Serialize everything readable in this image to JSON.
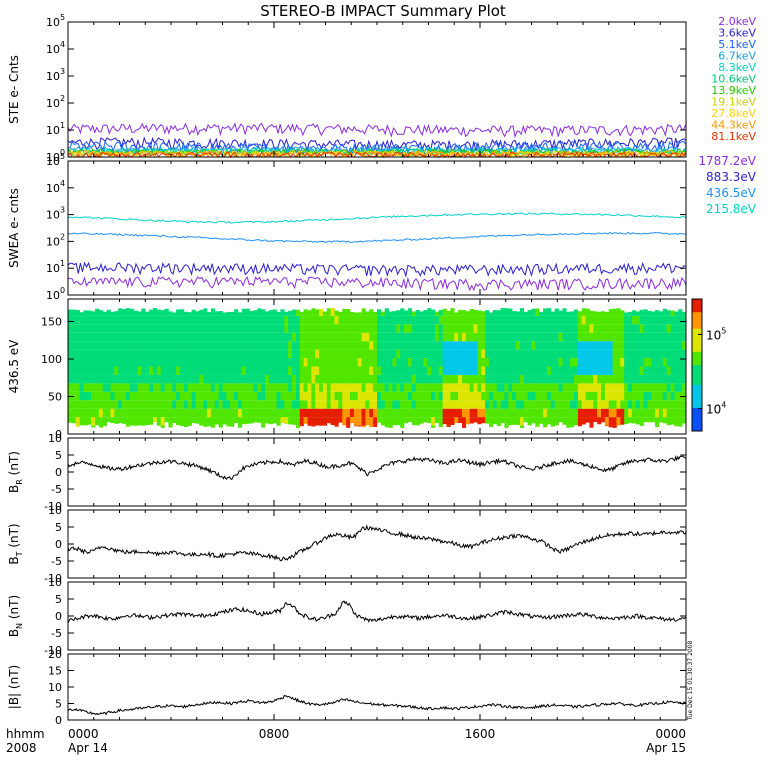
{
  "title": "STEREO-B IMPACT Summary Plot",
  "footer": {
    "row1": "hhmm",
    "row2": "2008",
    "x_ticks": [
      "0000",
      "0800",
      "1600",
      "0000"
    ],
    "x_dates": [
      "Apr 14",
      "",
      "",
      "Apr 15"
    ]
  },
  "timestamp": "Tue Dec 15 01:30:37 2008",
  "chart_data": [
    {
      "type": "line",
      "ylabel": "STE e- Cnts",
      "yscale": "log",
      "ylim": [
        1,
        100000
      ],
      "y_ticks": [
        "10",
        "10",
        "10",
        "10",
        "10",
        "10"
      ],
      "y_tick_exps": [
        "0",
        "1",
        "2",
        "3",
        "4",
        "5"
      ],
      "series": [
        {
          "name": "2.0keV",
          "color": "#8b2be2",
          "level": 11
        },
        {
          "name": "3.6keV",
          "color": "#2a1fcf",
          "level": 3.2
        },
        {
          "name": "5.1keV",
          "color": "#1e64ff",
          "level": 2.4
        },
        {
          "name": "6.7keV",
          "color": "#1ea0e6",
          "level": 1.9
        },
        {
          "name": "8.3keV",
          "color": "#00d2c8",
          "level": 1.7
        },
        {
          "name": "10.6keV",
          "color": "#00c878",
          "level": 1.6
        },
        {
          "name": "13.9keV",
          "color": "#28c800",
          "level": 1.5
        },
        {
          "name": "19.1keV",
          "color": "#c8d200",
          "level": 1.4
        },
        {
          "name": "27.8keV",
          "color": "#ffd200",
          "level": 1.3
        },
        {
          "name": "44.3keV",
          "color": "#ff9600",
          "level": 1.25
        },
        {
          "name": "81.1keV",
          "color": "#e63200",
          "level": 1.2
        }
      ]
    },
    {
      "type": "line",
      "ylabel": "SWEA e- cnts",
      "yscale": "log",
      "ylim": [
        1,
        100000
      ],
      "y_ticks": [
        "10",
        "10",
        "10",
        "10",
        "10",
        "10"
      ],
      "y_tick_exps": [
        "0",
        "1",
        "2",
        "3",
        "4",
        "5"
      ],
      "series": [
        {
          "name": "1787.2eV",
          "color": "#8b2be2",
          "level": 3
        },
        {
          "name": "883.3eV",
          "color": "#2a1fcf",
          "level": 10
        },
        {
          "name": "436.5eV",
          "color": "#1e90ff",
          "level": 150
        },
        {
          "name": "215.8eV",
          "color": "#00d2c8",
          "level": 800
        }
      ]
    },
    {
      "type": "heatmap",
      "ylabel": "436.5 eV",
      "ylim": [
        0,
        180
      ],
      "y_ticks": [
        "0",
        "50",
        "100",
        "150"
      ],
      "colorbar": {
        "ticks": [
          "10",
          "10"
        ],
        "tick_exps": [
          "4",
          "5"
        ],
        "range": [
          5000,
          300000
        ]
      }
    },
    {
      "type": "line",
      "ylabel": "B",
      "ylabel_sub": "R",
      "ylabel_unit": "(nT)",
      "ylim": [
        -10,
        10
      ],
      "y_ticks": [
        "10",
        "5",
        "0",
        "-5",
        "-10"
      ],
      "color": "#000000"
    },
    {
      "type": "line",
      "ylabel": "B",
      "ylabel_sub": "T",
      "ylabel_unit": "(nT)",
      "ylim": [
        -10,
        10
      ],
      "y_ticks": [
        "10",
        "5",
        "0",
        "-5",
        "-10"
      ],
      "color": "#000000"
    },
    {
      "type": "line",
      "ylabel": "B",
      "ylabel_sub": "N",
      "ylabel_unit": "(nT)",
      "ylim": [
        -10,
        10
      ],
      "y_ticks": [
        "10",
        "5",
        "0",
        "-5",
        "-10"
      ],
      "color": "#000000"
    },
    {
      "type": "line",
      "ylabel": "|B| (nT)",
      "ylim": [
        0,
        20
      ],
      "y_ticks": [
        "20",
        "15",
        "10",
        "5",
        "0"
      ],
      "color": "#000000"
    }
  ],
  "series_levels": {
    "BR": [
      2.0,
      2.4,
      2.7,
      2.6,
      2.3,
      1.8,
      1.2,
      1.0,
      0.9,
      1.1,
      1.5,
      1.9,
      2.2,
      2.5,
      2.8,
      3.0,
      3.1,
      3.0,
      2.7,
      2.4,
      2.0,
      1.6,
      1.0,
      0.2,
      -0.8,
      -1.5,
      -2.0,
      -0.5,
      1.0,
      1.8,
      2.2,
      2.6,
      2.9,
      3.0,
      3.1,
      2.5,
      2.0,
      2.6,
      3.2,
      3.0,
      2.4,
      1.8,
      1.5,
      1.8,
      2.2,
      2.6,
      2.0,
      0.6,
      -0.5,
      0.4,
      1.2,
      2.0,
      2.6,
      3.0,
      3.3,
      3.6,
      3.8,
      3.7,
      3.4,
      3.0,
      2.6,
      2.8,
      3.2,
      3.4,
      3.0,
      2.6,
      2.2,
      2.6,
      3.0,
      3.3,
      3.0,
      2.4,
      1.8,
      1.2,
      0.8,
      1.0,
      1.6,
      2.2,
      2.6,
      3.0,
      3.2,
      3.0,
      2.5,
      2.0,
      1.6,
      1.0,
      0.4,
      0.8,
      1.6,
      2.4,
      3.0,
      3.3,
      3.5,
      3.6,
      3.4,
      3.2,
      3.4,
      3.8,
      4.2,
      4.0
    ],
    "BT": [
      -1.5,
      -1.2,
      -1.8,
      -2.5,
      -2.2,
      -1.0,
      -0.8,
      -1.5,
      -2.0,
      -2.3,
      -2.4,
      -2.3,
      -2.2,
      -2.5,
      -2.8,
      -2.6,
      -2.4,
      -2.5,
      -2.8,
      -3.0,
      -3.2,
      -3.0,
      -2.8,
      -3.2,
      -3.5,
      -3.3,
      -3.0,
      -2.8,
      -2.6,
      -2.8,
      -3.0,
      -3.2,
      -3.5,
      -3.8,
      -4.5,
      -4.2,
      -3.5,
      -2.5,
      -1.5,
      -0.5,
      0.5,
      1.5,
      2.5,
      2.8,
      2.5,
      2.0,
      2.2,
      4.5,
      4.8,
      4.5,
      4.0,
      3.6,
      3.2,
      3.0,
      2.6,
      2.2,
      1.8,
      1.6,
      1.5,
      1.2,
      0.8,
      0.5,
      0.0,
      -0.5,
      -0.8,
      -0.6,
      0.2,
      0.8,
      1.2,
      1.6,
      2.0,
      2.3,
      2.5,
      2.2,
      1.8,
      1.2,
      0.6,
      -0.5,
      -1.8,
      -2.2,
      -1.5,
      -0.5,
      0.2,
      0.8,
      1.4,
      2.0,
      2.4,
      2.6,
      2.8,
      3.0,
      3.1,
      3.0,
      2.8,
      2.9,
      3.2,
      3.4,
      3.6,
      3.5,
      3.4,
      3.4
    ],
    "BN": [
      -1.5,
      -1.0,
      -0.5,
      0.0,
      0.2,
      -0.2,
      -0.6,
      -0.8,
      -0.5,
      0.0,
      0.3,
      0.1,
      -0.2,
      -0.4,
      -0.2,
      0.0,
      0.2,
      0.4,
      0.6,
      0.4,
      0.2,
      0.0,
      0.2,
      0.5,
      0.8,
      1.2,
      1.6,
      2.0,
      1.8,
      1.4,
      1.0,
      0.6,
      0.8,
      1.2,
      1.6,
      4.0,
      3.0,
      1.0,
      0.0,
      -0.8,
      -1.0,
      -0.6,
      0.2,
      1.0,
      4.0,
      3.5,
      0.5,
      -0.5,
      -1.2,
      -1.4,
      -1.0,
      -0.6,
      -0.2,
      0.0,
      -0.2,
      -0.4,
      -0.6,
      -0.4,
      -0.2,
      0.0,
      0.2,
      0.1,
      -0.2,
      -0.5,
      -0.8,
      -0.6,
      -0.3,
      0.0,
      0.4,
      0.8,
      1.2,
      1.0,
      0.6,
      0.3,
      0.0,
      -0.3,
      -0.5,
      -0.4,
      -0.2,
      0.0,
      0.2,
      0.4,
      0.5,
      0.3,
      0.0,
      -0.3,
      -0.5,
      -0.7,
      -0.6,
      -0.4,
      -0.2,
      0.0,
      -0.2,
      -0.4,
      -0.6,
      -0.8,
      -1.0,
      -1.0,
      -0.9,
      -0.8
    ],
    "BM": [
      3.0,
      3.2,
      2.8,
      2.4,
      2.0,
      1.8,
      2.0,
      2.4,
      2.8,
      3.0,
      3.2,
      3.4,
      3.6,
      3.8,
      4.0,
      4.2,
      4.3,
      4.2,
      4.0,
      4.2,
      4.5,
      4.8,
      5.0,
      5.2,
      5.4,
      5.2,
      5.0,
      5.3,
      5.6,
      5.8,
      5.5,
      5.2,
      5.4,
      5.8,
      6.5,
      7.5,
      6.5,
      5.8,
      5.2,
      4.8,
      4.6,
      4.8,
      5.0,
      5.4,
      6.2,
      6.0,
      5.5,
      5.2,
      5.0,
      4.8,
      4.6,
      4.5,
      4.4,
      4.3,
      4.2,
      4.0,
      3.8,
      3.6,
      3.4,
      3.6,
      3.8,
      3.6,
      3.4,
      3.6,
      3.8,
      4.0,
      4.2,
      4.5,
      4.6,
      4.4,
      4.2,
      4.0,
      3.8,
      3.6,
      3.8,
      4.0,
      4.2,
      4.4,
      4.5,
      4.4,
      4.2,
      4.0,
      4.1,
      4.3,
      4.5,
      4.6,
      4.8,
      5.0,
      5.0,
      4.8,
      4.6,
      4.5,
      4.6,
      4.8,
      5.0,
      5.2,
      5.4,
      5.3,
      5.2,
      5.0
    ]
  }
}
